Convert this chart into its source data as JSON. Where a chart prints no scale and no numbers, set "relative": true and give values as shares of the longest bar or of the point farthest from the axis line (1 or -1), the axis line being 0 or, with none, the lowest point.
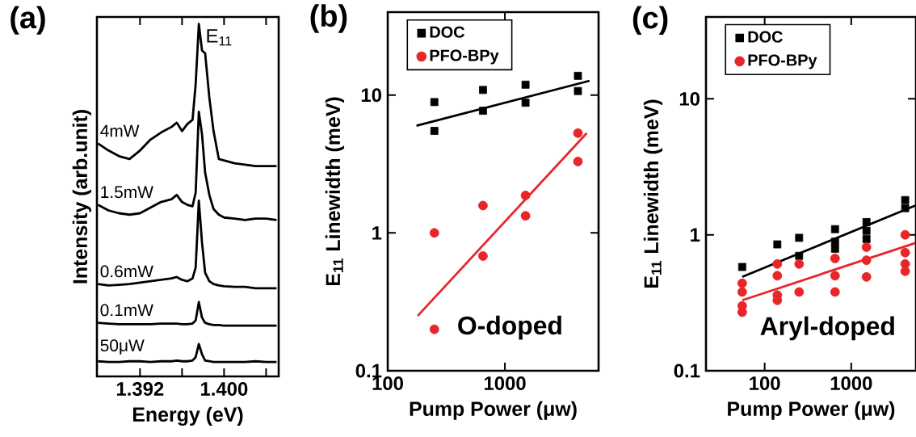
{
  "chart_data": [
    {
      "type": "line",
      "title": "(a)",
      "xlabel": "Energy (eV)",
      "ylabel": "Intensity (arb.unit)",
      "relative": true,
      "tick_labels": "x",
      "xlim": [
        1.3879,
        1.4052
      ],
      "xticks": [
        1.392,
        {
          "value": 1.396,
          "label": null
        },
        {
          "value": 1.4,
          "label": "1.400"
        },
        {
          "value": 1.404,
          "label": null
        }
      ],
      "x": [
        1.388,
        1.389,
        1.39,
        1.391,
        1.392,
        1.393,
        1.394,
        1.395,
        1.3955,
        1.396,
        1.3965,
        1.397,
        1.3973,
        1.3976,
        1.3979,
        1.3982,
        1.3986,
        1.399,
        1.3995,
        1.4,
        1.401,
        1.402,
        1.403,
        1.404,
        1.405
      ],
      "series": [
        {
          "name": "4mW",
          "color": "#000000",
          "values": [
            0.661,
            0.641,
            0.625,
            0.617,
            0.641,
            0.672,
            0.692,
            0.708,
            0.72,
            0.696,
            0.716,
            0.728,
            0.83,
            1.0,
            0.925,
            0.917,
            0.791,
            0.696,
            0.617,
            0.613,
            0.605,
            0.601,
            0.597,
            0.597,
            0.597
          ]
        },
        {
          "name": "1.5mW",
          "color": "#000000",
          "values": [
            0.487,
            0.471,
            0.463,
            0.459,
            0.463,
            0.479,
            0.495,
            0.503,
            0.515,
            0.495,
            0.487,
            0.483,
            0.522,
            0.751,
            0.688,
            0.578,
            0.515,
            0.475,
            0.459,
            0.451,
            0.448,
            0.444,
            0.448,
            0.448,
            0.444
          ]
        },
        {
          "name": "0.6mW",
          "color": "#000000",
          "values": [
            0.262,
            0.258,
            0.26,
            0.262,
            0.266,
            0.27,
            0.274,
            0.278,
            0.282,
            0.274,
            0.27,
            0.278,
            0.309,
            0.499,
            0.38,
            0.294,
            0.27,
            0.262,
            0.258,
            0.256,
            0.254,
            0.254,
            0.25,
            0.25,
            0.25
          ]
        },
        {
          "name": "0.1mW",
          "color": "#000000",
          "values": [
            0.152,
            0.15,
            0.148,
            0.148,
            0.148,
            0.148,
            0.15,
            0.15,
            0.15,
            0.148,
            0.148,
            0.15,
            0.159,
            0.211,
            0.167,
            0.152,
            0.148,
            0.146,
            0.146,
            0.144,
            0.144,
            0.144,
            0.144,
            0.144,
            0.144
          ]
        },
        {
          "name": "50μW",
          "color": "#000000",
          "values": [
            0.043,
            0.041,
            0.041,
            0.043,
            0.043,
            0.041,
            0.043,
            0.043,
            0.045,
            0.043,
            0.043,
            0.045,
            0.055,
            0.092,
            0.063,
            0.045,
            0.043,
            0.041,
            0.041,
            0.041,
            0.041,
            0.041,
            0.043,
            0.041,
            0.041
          ]
        }
      ],
      "annotations": [
        {
          "text": "E$_{11}$",
          "x": 1.3976,
          "y": 1.0
        }
      ]
    },
    {
      "type": "scatter",
      "title": "(b)",
      "xlabel": "Pump Power (μw)",
      "ylabel": "E$_{11}$ Linewidth (meV)",
      "log": "xy",
      "xlim": [
        100,
        6300
      ],
      "ylim": [
        0.1,
        40
      ],
      "xticks": [
        100,
        1000
      ],
      "yticks": [
        0.1,
        1,
        10
      ],
      "legend": "top left",
      "series": [
        {
          "name": "DOC",
          "color": "#000000",
          "marker": "square",
          "x": [
            250,
            250,
            650,
            650,
            1500,
            1500,
            4200,
            4200
          ],
          "values": [
            8.9,
            5.5,
            10.9,
            7.7,
            11.9,
            8.8,
            13.8,
            10.7
          ]
        },
        {
          "name": "PFO-BPy",
          "color": "#e8262a",
          "marker": "circle",
          "x": [
            250,
            250,
            650,
            650,
            1500,
            1500,
            4200,
            4200
          ],
          "values": [
            1.0,
            0.2,
            1.58,
            0.68,
            1.87,
            1.33,
            5.3,
            3.3
          ]
        },
        {
          "type": "line",
          "color": "#000000",
          "x": [
            176,
            5280
          ],
          "values": [
            6.0,
            12.7
          ]
        },
        {
          "type": "line",
          "color": "#e8262a",
          "x": [
            180,
            5000
          ],
          "values": [
            0.25,
            5.3
          ]
        }
      ],
      "annotations": [
        "O-doped"
      ]
    },
    {
      "type": "scatter",
      "title": "(c)",
      "xlabel": "Pump Power (μw)",
      "ylabel": "E$_{11}$ Linewidth (meV)",
      "log": "xy",
      "xlim": [
        21,
        5600
      ],
      "ylim": [
        0.1,
        40
      ],
      "xticks": [
        100,
        1000
      ],
      "yticks": [
        0.1,
        1,
        10
      ],
      "legend": "top left",
      "series": [
        {
          "name": "DOC",
          "color": "#000000",
          "marker": "square",
          "x": [
            55,
            140,
            250,
            250,
            650,
            650,
            650,
            1500,
            1500,
            1500,
            4200,
            4200
          ],
          "values": [
            0.58,
            0.85,
            0.95,
            0.7,
            1.1,
            0.89,
            0.79,
            1.24,
            1.07,
            0.93,
            1.8,
            1.57
          ]
        },
        {
          "name": "PFO-BPy",
          "color": "#e8262a",
          "marker": "circle",
          "x": [
            55,
            55,
            55,
            55,
            140,
            140,
            140,
            140,
            250,
            250,
            650,
            650,
            650,
            1500,
            1500,
            1500,
            4200,
            4200,
            4200,
            4200
          ],
          "values": [
            0.44,
            0.38,
            0.3,
            0.27,
            0.61,
            0.5,
            0.36,
            0.33,
            0.61,
            0.38,
            0.67,
            0.5,
            0.38,
            0.81,
            0.65,
            0.49,
            1.0,
            0.74,
            0.61,
            0.54
          ]
        },
        {
          "type": "line",
          "color": "#000000",
          "x": [
            55,
            5500
          ],
          "values": [
            0.49,
            1.64
          ]
        },
        {
          "type": "line",
          "color": "#e8262a",
          "x": [
            55,
            5500
          ],
          "values": [
            0.33,
            0.87
          ]
        }
      ],
      "annotations": [
        "Aryl-doped"
      ]
    }
  ]
}
